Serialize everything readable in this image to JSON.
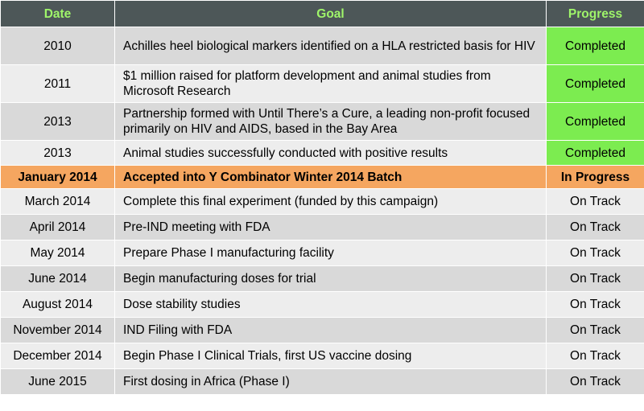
{
  "table": {
    "headers": {
      "date": "Date",
      "goal": "Goal",
      "progress": "Progress"
    },
    "colors": {
      "header_bg": "#4d5758",
      "header_text": "#9ff56a",
      "completed_bg": "#7cec50",
      "highlight_bg": "#f5a660"
    },
    "rows": [
      {
        "date": "2010",
        "goal": "Achilles heel biological markers identified on a HLA restricted basis for HIV",
        "progress": "Completed"
      },
      {
        "date": "2011",
        "goal": "$1 million raised for platform development and animal studies from Microsoft Research",
        "progress": "Completed"
      },
      {
        "date": "2013",
        "goal": "Partnership formed with Until There’s a Cure, a leading non-profit focused primarily on HIV and AIDS, based in the Bay Area",
        "progress": "Completed"
      },
      {
        "date": "2013",
        "goal": "Animal studies successfully conducted with positive results",
        "progress": "Completed"
      },
      {
        "date": "January 2014",
        "goal": "Accepted into Y Combinator Winter 2014 Batch",
        "progress": "In Progress"
      },
      {
        "date": "March 2014",
        "goal": "Complete this final experiment (funded by this campaign)",
        "progress": "On Track"
      },
      {
        "date": "April 2014",
        "goal": "Pre-IND meeting with FDA",
        "progress": "On Track"
      },
      {
        "date": "May 2014",
        "goal": "Prepare Phase I manufacturing facility",
        "progress": "On Track"
      },
      {
        "date": "June 2014",
        "goal": "Begin manufacturing doses for trial",
        "progress": "On Track"
      },
      {
        "date": "August 2014",
        "goal": "Dose stability studies",
        "progress": "On Track"
      },
      {
        "date": "November 2014",
        "goal": "IND Filing with FDA",
        "progress": "On Track"
      },
      {
        "date": "December 2014",
        "goal": "Begin Phase I Clinical Trials, first US vaccine dosing",
        "progress": "On Track"
      },
      {
        "date": "June 2015",
        "goal": "First dosing in Africa (Phase I)",
        "progress": "On Track"
      }
    ]
  }
}
